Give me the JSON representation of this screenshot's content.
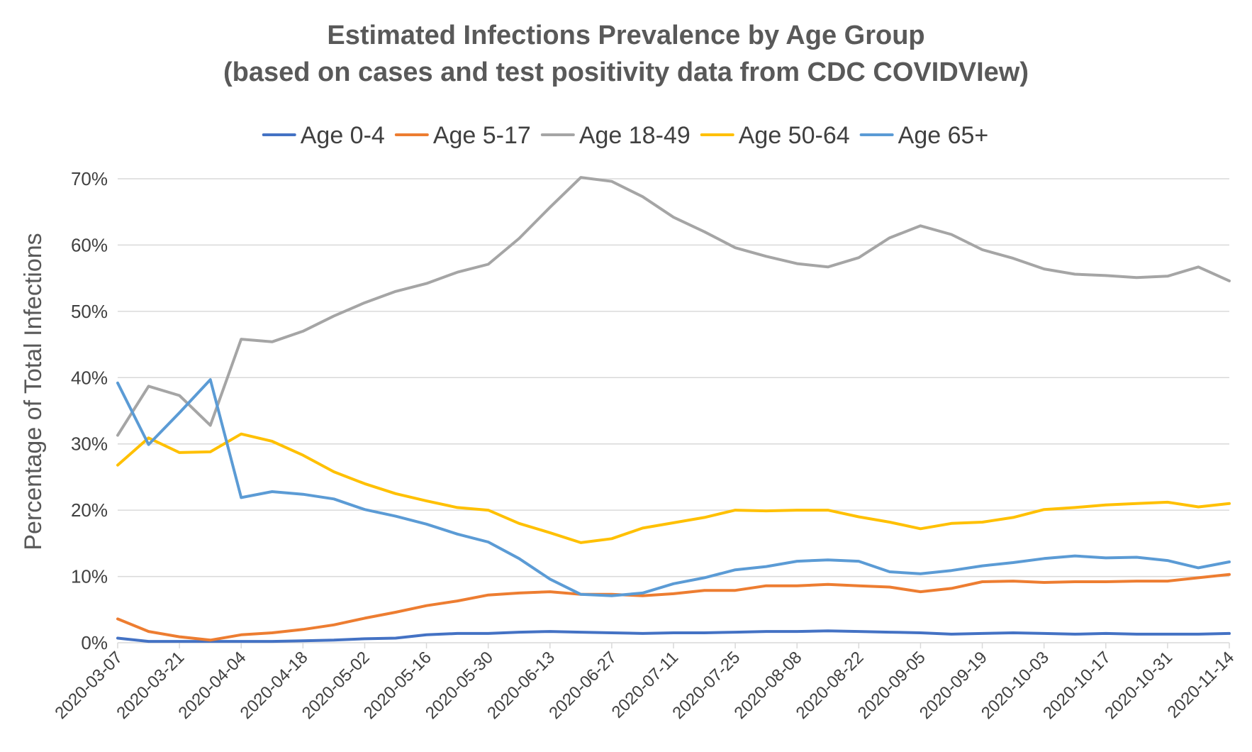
{
  "chart_data": {
    "type": "line",
    "title_line1": "Estimated Infections Prevalence by Age Group",
    "title_line2": "(based on cases and test positivity data from CDC COVIDVIew)",
    "xlabel": "",
    "ylabel": "Percentage of Total Infections",
    "ylim": [
      0,
      70
    ],
    "yticks": [
      "0%",
      "10%",
      "20%",
      "30%",
      "40%",
      "50%",
      "60%",
      "70%"
    ],
    "ytick_values": [
      0,
      10,
      20,
      30,
      40,
      50,
      60,
      70
    ],
    "grid": true,
    "legend_position": "top",
    "x": [
      "2020-03-07",
      "2020-03-14",
      "2020-03-21",
      "2020-03-28",
      "2020-04-04",
      "2020-04-11",
      "2020-04-18",
      "2020-04-25",
      "2020-05-02",
      "2020-05-09",
      "2020-05-16",
      "2020-05-23",
      "2020-05-30",
      "2020-06-06",
      "2020-06-13",
      "2020-06-20",
      "2020-06-27",
      "2020-07-04",
      "2020-07-11",
      "2020-07-18",
      "2020-07-25",
      "2020-08-01",
      "2020-08-08",
      "2020-08-15",
      "2020-08-22",
      "2020-08-29",
      "2020-09-05",
      "2020-09-12",
      "2020-09-19",
      "2020-09-26",
      "2020-10-03",
      "2020-10-10",
      "2020-10-17",
      "2020-10-24",
      "2020-10-31",
      "2020-11-07",
      "2020-11-14"
    ],
    "xtick_labels": [
      "2020-03-07",
      "2020-03-21",
      "2020-04-04",
      "2020-04-18",
      "2020-05-02",
      "2020-05-16",
      "2020-05-30",
      "2020-06-13",
      "2020-06-27",
      "2020-07-11",
      "2020-07-25",
      "2020-08-08",
      "2020-08-22",
      "2020-09-05",
      "2020-09-19",
      "2020-10-03",
      "2020-10-17",
      "2020-10-31",
      "2020-11-14"
    ],
    "series": [
      {
        "name": "Age 0-4",
        "color": "#4472C4",
        "values": [
          0.7,
          0.2,
          0.2,
          0.2,
          0.2,
          0.2,
          0.3,
          0.4,
          0.6,
          0.7,
          1.2,
          1.4,
          1.4,
          1.6,
          1.7,
          1.6,
          1.5,
          1.4,
          1.5,
          1.5,
          1.6,
          1.7,
          1.7,
          1.8,
          1.7,
          1.6,
          1.5,
          1.3,
          1.4,
          1.5,
          1.4,
          1.3,
          1.4,
          1.3,
          1.3,
          1.3,
          1.4
        ]
      },
      {
        "name": "Age 5-17",
        "color": "#ED7D31",
        "values": [
          3.6,
          1.7,
          0.9,
          0.4,
          1.2,
          1.5,
          2.0,
          2.7,
          3.7,
          4.6,
          5.6,
          6.3,
          7.2,
          7.5,
          7.7,
          7.3,
          7.3,
          7.1,
          7.4,
          7.9,
          7.9,
          8.6,
          8.6,
          8.8,
          8.6,
          8.4,
          7.7,
          8.2,
          9.2,
          9.3,
          9.1,
          9.2,
          9.2,
          9.3,
          9.3,
          9.8,
          10.3
        ]
      },
      {
        "name": "Age 18-49",
        "color": "#A5A5A5",
        "values": [
          31.3,
          38.7,
          37.3,
          32.8,
          45.8,
          45.4,
          47.0,
          49.3,
          51.3,
          53.0,
          54.2,
          55.9,
          57.1,
          61.0,
          65.7,
          70.2,
          69.6,
          67.3,
          64.2,
          62.0,
          59.6,
          58.3,
          57.2,
          56.7,
          58.1,
          61.1,
          62.9,
          61.6,
          59.3,
          58.0,
          56.4,
          55.6,
          55.4,
          55.1,
          55.3,
          56.7,
          54.6
        ]
      },
      {
        "name": "Age 50-64",
        "color": "#FFC000",
        "values": [
          26.8,
          30.9,
          28.7,
          28.8,
          31.5,
          30.4,
          28.3,
          25.8,
          24.0,
          22.5,
          21.4,
          20.4,
          20.0,
          18.0,
          16.6,
          15.1,
          15.7,
          17.3,
          18.1,
          18.9,
          20.0,
          19.9,
          20.0,
          20.0,
          19.0,
          18.2,
          17.2,
          18.0,
          18.2,
          18.9,
          20.1,
          20.4,
          20.8,
          21.0,
          21.2,
          20.5,
          21.0
        ]
      },
      {
        "name": "Age 65+",
        "color": "#5B9BD5",
        "values": [
          39.2,
          29.9,
          34.7,
          39.7,
          21.9,
          22.8,
          22.4,
          21.7,
          20.1,
          19.1,
          17.9,
          16.4,
          15.2,
          12.7,
          9.6,
          7.3,
          7.1,
          7.5,
          8.9,
          9.8,
          11.0,
          11.5,
          12.3,
          12.5,
          12.3,
          10.7,
          10.4,
          10.9,
          11.6,
          12.1,
          12.7,
          13.1,
          12.8,
          12.9,
          12.4,
          11.3,
          12.2
        ]
      }
    ]
  }
}
